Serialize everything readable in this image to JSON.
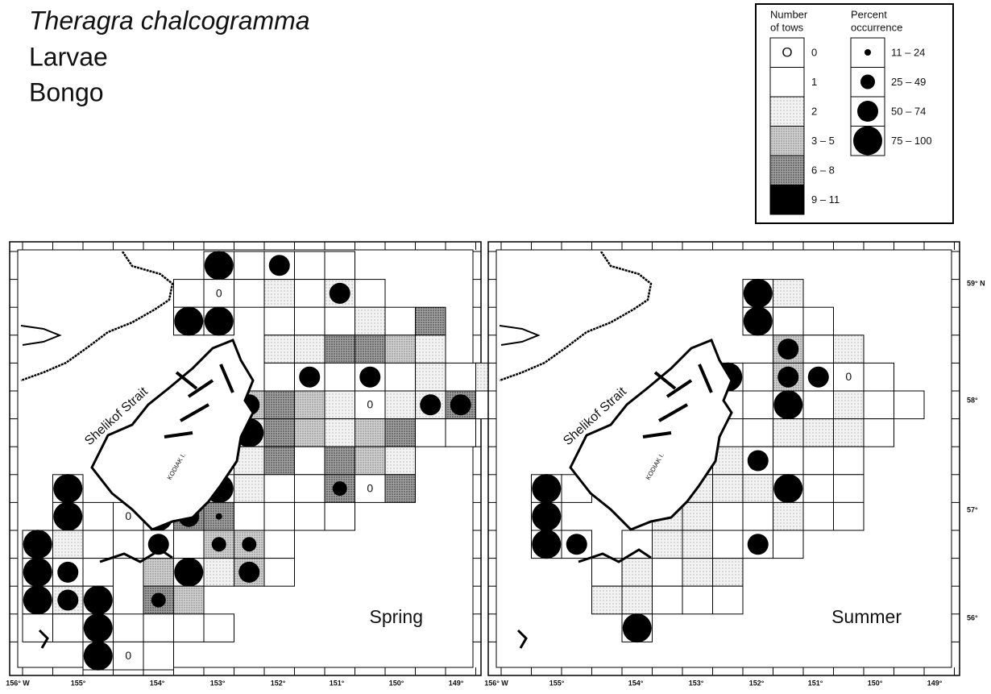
{
  "title": {
    "species": "Theragra chalcogramma",
    "stage": "Larvae",
    "gear": "Bongo"
  },
  "legend": {
    "tows_heading": [
      "Number",
      "of tows"
    ],
    "zero_symbol": "O",
    "tows_classes": [
      "0",
      "1",
      "2",
      "3 – 5",
      "6 – 8",
      "9 – 11"
    ],
    "percent_heading": [
      "Percent",
      "occurrence"
    ],
    "percent_classes": [
      "11 – 24",
      "25 – 49",
      "50 – 74",
      "75 – 100"
    ]
  },
  "maps": [
    {
      "season": "Spring",
      "strait": "Shelikof Strait",
      "island": "KODIAK I.",
      "zero": "0",
      "longitudes": [
        "156° W",
        "155°",
        "154°",
        "153°",
        "152°",
        "151°",
        "150°",
        "149°"
      ]
    },
    {
      "season": "Summer",
      "strait": "Shelikof Strait",
      "island": "KODIAK I.",
      "zero": "0",
      "longitudes": [
        "156° W",
        "155°",
        "154°",
        "153°",
        "152°",
        "151°",
        "150°",
        "149°"
      ],
      "latitudes": [
        "59° N",
        "58°",
        "57°",
        "56°"
      ]
    }
  ]
}
